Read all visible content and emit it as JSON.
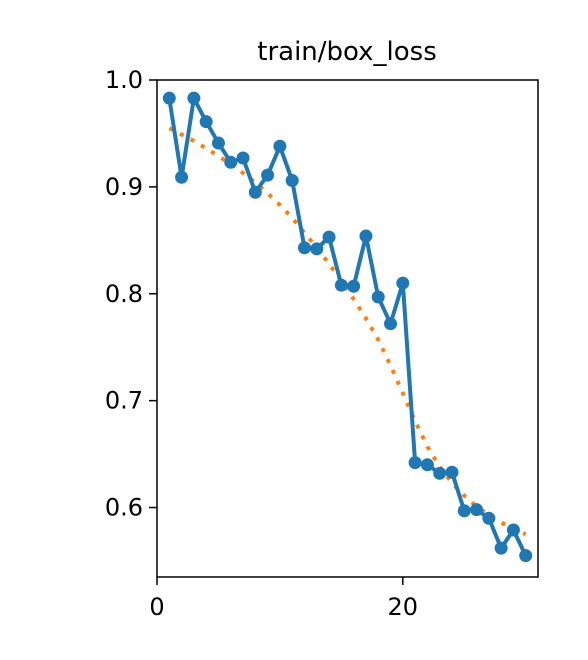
{
  "chart_data": {
    "type": "line",
    "title": "train/box_loss",
    "xlabel": "",
    "ylabel": "",
    "xlim": [
      0,
      31
    ],
    "ylim": [
      0.535,
      1.0
    ],
    "xticks": [
      0,
      20
    ],
    "yticks": [
      0.6,
      0.7,
      0.8,
      0.9,
      1.0
    ],
    "xtick_labels": [
      "0",
      "20"
    ],
    "ytick_labels": [
      "0.6",
      "0.7",
      "0.8",
      "0.9",
      "1.0"
    ],
    "grid": false,
    "series": [
      {
        "style": "line-markers",
        "color": "#1f77b4",
        "x": [
          1,
          2,
          3,
          4,
          5,
          6,
          7,
          8,
          9,
          10,
          11,
          12,
          13,
          14,
          15,
          16,
          17,
          18,
          19,
          20,
          21,
          22,
          23,
          24,
          25,
          26,
          27,
          28,
          29,
          30
        ],
        "y": [
          0.983,
          0.909,
          0.983,
          0.961,
          0.941,
          0.923,
          0.927,
          0.895,
          0.911,
          0.938,
          0.906,
          0.843,
          0.842,
          0.853,
          0.808,
          0.807,
          0.854,
          0.797,
          0.772,
          0.81,
          0.642,
          0.64,
          0.632,
          0.633,
          0.597,
          0.598,
          0.59,
          0.562,
          0.579,
          0.555
        ]
      },
      {
        "style": "dotted",
        "color": "#ff7f0e",
        "x": [
          1,
          2,
          3,
          4,
          5,
          6,
          7,
          8,
          9,
          10,
          11,
          12,
          13,
          14,
          15,
          16,
          17,
          18,
          19,
          20,
          21,
          22,
          23,
          24,
          25,
          26,
          27,
          28,
          29,
          30
        ],
        "y": [
          0.955,
          0.949,
          0.943,
          0.936,
          0.929,
          0.921,
          0.913,
          0.904,
          0.894,
          0.883,
          0.871,
          0.857,
          0.843,
          0.828,
          0.812,
          0.795,
          0.777,
          0.757,
          0.733,
          0.707,
          0.681,
          0.657,
          0.638,
          0.623,
          0.611,
          0.601,
          0.593,
          0.586,
          0.58,
          0.575
        ]
      }
    ]
  }
}
